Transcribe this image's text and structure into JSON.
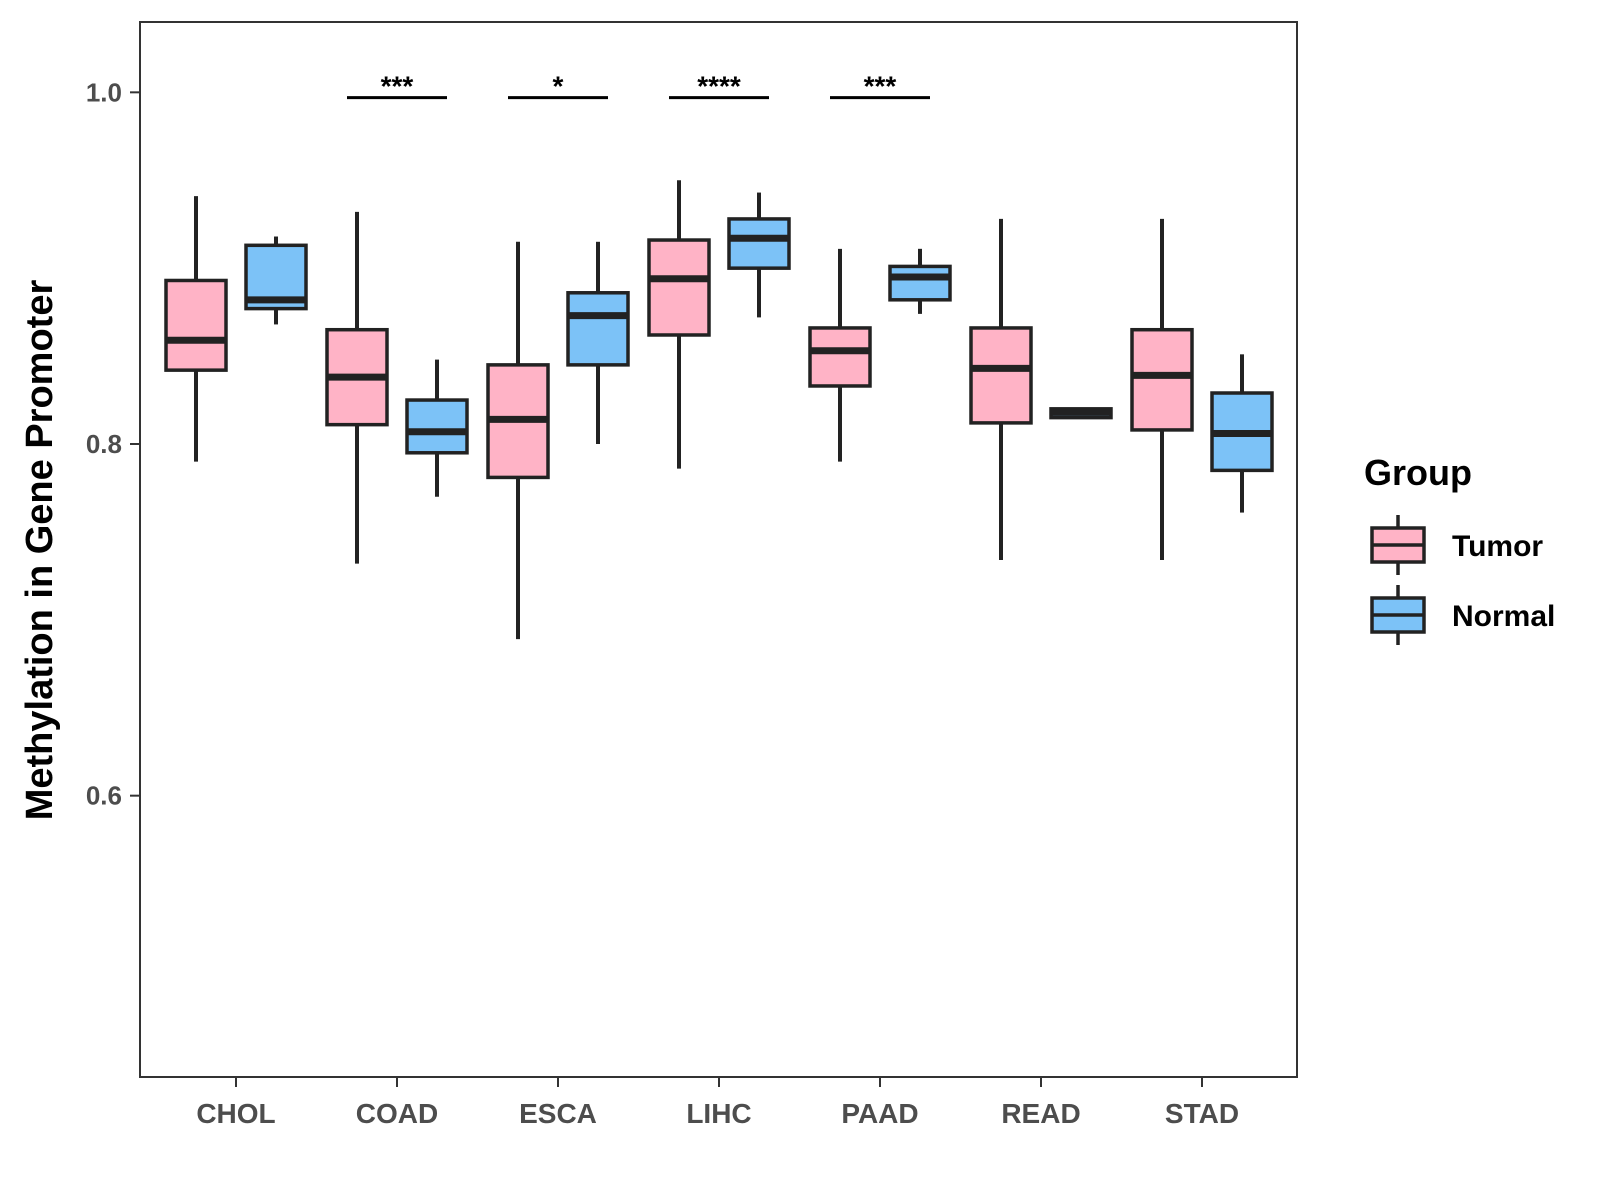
{
  "chart_data": {
    "type": "boxplot",
    "title": "",
    "xlabel": "",
    "ylabel": "Methylation in Gene Promoter",
    "ylim": [
      0.44,
      1.04
    ],
    "yticks": [
      0.6,
      0.8,
      1.0
    ],
    "ytick_labels": [
      "0.6",
      "0.8",
      "1.0"
    ],
    "grid": false,
    "categories": [
      "CHOL",
      "COAD",
      "ESCA",
      "LIHC",
      "PAAD",
      "READ",
      "STAD"
    ],
    "legend": {
      "title": "Group",
      "position": "right",
      "entries": [
        {
          "name": "Tumor",
          "color": "#ffb3c6"
        },
        {
          "name": "Normal",
          "color": "#7cc2f7"
        }
      ]
    },
    "series": [
      {
        "name": "Tumor",
        "color": "#ffb3c6",
        "boxes": [
          {
            "min": 0.79,
            "q1": 0.842,
            "median": 0.859,
            "q3": 0.893,
            "max": 0.941
          },
          {
            "min": 0.732,
            "q1": 0.811,
            "median": 0.838,
            "q3": 0.865,
            "max": 0.932
          },
          {
            "min": 0.689,
            "q1": 0.781,
            "median": 0.814,
            "q3": 0.845,
            "max": 0.915
          },
          {
            "min": 0.786,
            "q1": 0.862,
            "median": 0.894,
            "q3": 0.916,
            "max": 0.95
          },
          {
            "min": 0.79,
            "q1": 0.833,
            "median": 0.853,
            "q3": 0.866,
            "max": 0.911
          },
          {
            "min": 0.734,
            "q1": 0.812,
            "median": 0.843,
            "q3": 0.866,
            "max": 0.928
          },
          {
            "min": 0.734,
            "q1": 0.808,
            "median": 0.839,
            "q3": 0.865,
            "max": 0.928
          }
        ]
      },
      {
        "name": "Normal",
        "color": "#7cc2f7",
        "boxes": [
          {
            "min": 0.868,
            "q1": 0.877,
            "median": 0.882,
            "q3": 0.913,
            "max": 0.918
          },
          {
            "min": 0.77,
            "q1": 0.795,
            "median": 0.807,
            "q3": 0.825,
            "max": 0.848
          },
          {
            "min": 0.8,
            "q1": 0.845,
            "median": 0.873,
            "q3": 0.886,
            "max": 0.915
          },
          {
            "min": 0.872,
            "q1": 0.9,
            "median": 0.917,
            "q3": 0.928,
            "max": 0.943
          },
          {
            "min": 0.874,
            "q1": 0.882,
            "median": 0.895,
            "q3": 0.901,
            "max": 0.911
          },
          {
            "min": 0.815,
            "q1": 0.815,
            "median": 0.818,
            "q3": 0.82,
            "max": 0.82
          },
          {
            "min": 0.761,
            "q1": 0.785,
            "median": 0.806,
            "q3": 0.829,
            "max": 0.851
          }
        ]
      }
    ],
    "significance": [
      {
        "category": "COAD",
        "label": "***",
        "y": 0.997
      },
      {
        "category": "ESCA",
        "label": "*",
        "y": 0.997
      },
      {
        "category": "LIHC",
        "label": "****",
        "y": 0.997
      },
      {
        "category": "PAAD",
        "label": "***",
        "y": 0.997
      }
    ]
  }
}
